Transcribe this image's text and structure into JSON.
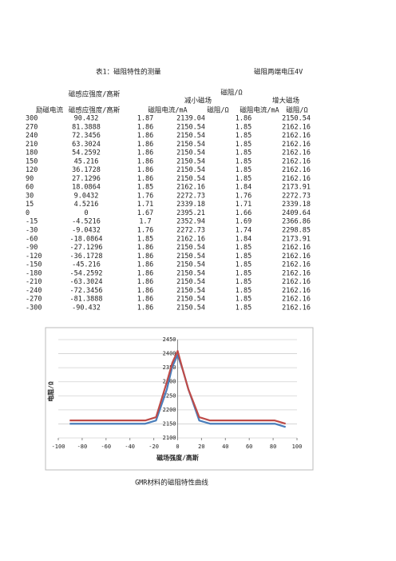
{
  "document": {
    "title": "表1：磁阻特性的测量",
    "voltage": "磁阻两端电压4V",
    "header": {
      "field": "磁感应强度/高斯",
      "resistance": "磁阻/Ω",
      "decrease": "减小磁场",
      "increase": "增大磁场",
      "columns": [
        "励磁电流",
        "磁感应强度/高斯",
        "磁阻电流/mA",
        "磁阻/Ω",
        "磁阻电流/mA",
        "磁阻/Ω"
      ]
    },
    "rows": [
      [
        300,
        90.432,
        1.87,
        2139.04,
        1.86,
        2150.54
      ],
      [
        270,
        81.3888,
        1.86,
        2150.54,
        1.85,
        2162.16
      ],
      [
        240,
        72.3456,
        1.86,
        2150.54,
        1.85,
        2162.16
      ],
      [
        210,
        63.3024,
        1.86,
        2150.54,
        1.85,
        2162.16
      ],
      [
        180,
        54.2592,
        1.86,
        2150.54,
        1.85,
        2162.16
      ],
      [
        150,
        45.216,
        1.86,
        2150.54,
        1.85,
        2162.16
      ],
      [
        120,
        36.1728,
        1.86,
        2150.54,
        1.85,
        2162.16
      ],
      [
        90,
        27.1296,
        1.86,
        2150.54,
        1.85,
        2162.16
      ],
      [
        60,
        18.0864,
        1.85,
        2162.16,
        1.84,
        2173.91
      ],
      [
        30,
        9.0432,
        1.76,
        2272.73,
        1.76,
        2272.73
      ],
      [
        15,
        4.5216,
        1.71,
        2339.18,
        1.71,
        2339.18
      ],
      [
        0,
        0,
        1.67,
        2395.21,
        1.66,
        2409.64
      ],
      [
        -15,
        -4.5216,
        1.7,
        2352.94,
        1.69,
        2366.86
      ],
      [
        -30,
        -9.0432,
        1.76,
        2272.73,
        1.74,
        2298.85
      ],
      [
        -60,
        -18.0864,
        1.85,
        2162.16,
        1.84,
        2173.91
      ],
      [
        -90,
        -27.1296,
        1.86,
        2150.54,
        1.85,
        2162.16
      ],
      [
        -120,
        -36.1728,
        1.86,
        2150.54,
        1.85,
        2162.16
      ],
      [
        -150,
        -45.216,
        1.86,
        2150.54,
        1.85,
        2162.16
      ],
      [
        -180,
        -54.2592,
        1.86,
        2150.54,
        1.85,
        2162.16
      ],
      [
        -210,
        -63.3024,
        1.86,
        2150.54,
        1.85,
        2162.16
      ],
      [
        -240,
        -72.3456,
        1.86,
        2150.54,
        1.85,
        2162.16
      ],
      [
        -270,
        -81.3888,
        1.86,
        2150.54,
        1.85,
        2162.16
      ],
      [
        -300,
        -90.432,
        1.86,
        2150.54,
        1.85,
        2162.16
      ]
    ],
    "caption": "GMR材料的磁阻特性曲线"
  },
  "chart_data": {
    "type": "line",
    "x_label": "磁场强度/高斯",
    "y_label": "电阻/Ω",
    "x": [
      90.432,
      81.3888,
      72.3456,
      63.3024,
      54.2592,
      45.216,
      36.1728,
      27.1296,
      18.0864,
      9.0432,
      4.5216,
      0,
      -4.5216,
      -9.0432,
      -18.0864,
      -27.1296,
      -36.1728,
      -45.216,
      -54.2592,
      -63.3024,
      -72.3456,
      -81.3888,
      -90.432
    ],
    "series": [
      {
        "color": "#4a7ebb",
        "values": [
          2139.04,
          2150.54,
          2150.54,
          2150.54,
          2150.54,
          2150.54,
          2150.54,
          2150.54,
          2162.16,
          2272.73,
          2339.18,
          2395.21,
          2352.94,
          2272.73,
          2162.16,
          2150.54,
          2150.54,
          2150.54,
          2150.54,
          2150.54,
          2150.54,
          2150.54,
          2150.54
        ]
      },
      {
        "color": "#be4b48",
        "values": [
          2150.54,
          2162.16,
          2162.16,
          2162.16,
          2162.16,
          2162.16,
          2162.16,
          2162.16,
          2173.91,
          2272.73,
          2339.18,
          2409.64,
          2366.86,
          2298.85,
          2173.91,
          2162.16,
          2162.16,
          2162.16,
          2162.16,
          2162.16,
          2162.16,
          2162.16,
          2162.16
        ]
      }
    ],
    "xlim": [
      -100,
      100
    ],
    "xticks": [
      -100,
      -80,
      -60,
      -40,
      -20,
      0,
      20,
      40,
      60,
      80,
      100
    ],
    "ylim": [
      2100,
      2450
    ],
    "yticks": [
      2100,
      2150,
      2200,
      2250,
      2300,
      2350,
      2400,
      2450
    ],
    "grid": true
  }
}
